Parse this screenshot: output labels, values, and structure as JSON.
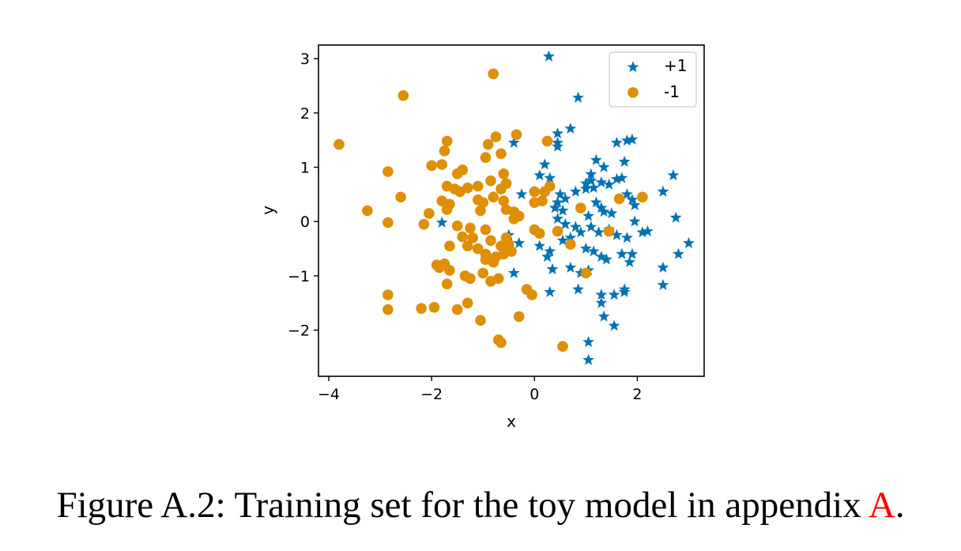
{
  "chart_data": {
    "type": "scatter",
    "xlabel": "x",
    "ylabel": "y",
    "xlim": [
      -4.2,
      3.3
    ],
    "ylim": [
      -2.85,
      3.25
    ],
    "xticks": [
      -4,
      -2,
      0,
      2
    ],
    "yticks": [
      -2,
      -1,
      0,
      1,
      2,
      3
    ],
    "grid": false,
    "legend_position": "top-right",
    "series": [
      {
        "name": "+1",
        "marker": "star",
        "color": "#0173b2",
        "points": [
          [
            0.28,
            3.04
          ],
          [
            0.85,
            2.28
          ],
          [
            0.7,
            1.71
          ],
          [
            0.45,
            1.62
          ],
          [
            0.45,
            1.38
          ],
          [
            0.45,
            1.45
          ],
          [
            1.6,
            1.45
          ],
          [
            1.8,
            1.49
          ],
          [
            1.9,
            1.51
          ],
          [
            -0.4,
            1.45
          ],
          [
            1.2,
            1.13
          ],
          [
            1.35,
            1.0
          ],
          [
            1.1,
            0.87
          ],
          [
            1.75,
            1.1
          ],
          [
            0.1,
            0.85
          ],
          [
            0.2,
            1.05
          ],
          [
            0.3,
            0.8
          ],
          [
            1.0,
            0.7
          ],
          [
            1.1,
            0.75
          ],
          [
            1.15,
            0.62
          ],
          [
            1.3,
            0.72
          ],
          [
            1.45,
            0.68
          ],
          [
            1.6,
            0.78
          ],
          [
            1.7,
            0.8
          ],
          [
            2.7,
            0.85
          ],
          [
            2.5,
            0.55
          ],
          [
            0.5,
            0.5
          ],
          [
            0.45,
            0.35
          ],
          [
            0.6,
            0.42
          ],
          [
            0.4,
            0.25
          ],
          [
            0.55,
            0.2
          ],
          [
            0.8,
            0.55
          ],
          [
            1.0,
            0.6
          ],
          [
            1.2,
            0.35
          ],
          [
            1.3,
            0.25
          ],
          [
            1.35,
            0.18
          ],
          [
            1.5,
            0.15
          ],
          [
            1.9,
            0.4
          ],
          [
            1.95,
            0.3
          ],
          [
            1.8,
            0.5
          ],
          [
            2.75,
            0.07
          ],
          [
            0.45,
            0.05
          ],
          [
            0.6,
            -0.05
          ],
          [
            0.8,
            -0.1
          ],
          [
            0.9,
            -0.2
          ],
          [
            1.05,
            0.1
          ],
          [
            1.1,
            -0.1
          ],
          [
            1.25,
            -0.2
          ],
          [
            1.45,
            -0.15
          ],
          [
            1.6,
            -0.25
          ],
          [
            1.8,
            -0.3
          ],
          [
            1.95,
            0.0
          ],
          [
            2.1,
            -0.2
          ],
          [
            2.2,
            -0.18
          ],
          [
            -0.3,
            -0.4
          ],
          [
            -0.5,
            -0.25
          ],
          [
            0.1,
            -0.45
          ],
          [
            0.3,
            -0.55
          ],
          [
            0.55,
            -0.35
          ],
          [
            0.7,
            -0.3
          ],
          [
            1.0,
            -0.5
          ],
          [
            1.15,
            -0.55
          ],
          [
            1.3,
            -0.65
          ],
          [
            1.4,
            -0.7
          ],
          [
            1.7,
            -0.6
          ],
          [
            1.9,
            -0.6
          ],
          [
            0.25,
            -0.65
          ],
          [
            0.35,
            -0.88
          ],
          [
            0.7,
            -0.85
          ],
          [
            0.9,
            -0.95
          ],
          [
            1.05,
            -0.9
          ],
          [
            1.85,
            -0.75
          ],
          [
            2.5,
            -0.85
          ],
          [
            2.8,
            -0.6
          ],
          [
            3.0,
            -0.4
          ],
          [
            -0.4,
            -0.95
          ],
          [
            0.3,
            -1.3
          ],
          [
            0.85,
            -1.25
          ],
          [
            1.3,
            -1.35
          ],
          [
            1.3,
            -1.5
          ],
          [
            1.55,
            -1.35
          ],
          [
            1.75,
            -1.25
          ],
          [
            1.75,
            -1.3
          ],
          [
            2.5,
            -1.17
          ],
          [
            1.35,
            -1.75
          ],
          [
            1.55,
            -1.92
          ],
          [
            1.05,
            -2.22
          ],
          [
            1.05,
            -2.55
          ],
          [
            -1.8,
            -0.02
          ],
          [
            -0.55,
            0.7
          ],
          [
            -0.25,
            0.5
          ]
        ]
      },
      {
        "name": "-1",
        "marker": "circle",
        "color": "#de8f05",
        "points": [
          [
            -0.8,
            2.72
          ],
          [
            -2.55,
            2.32
          ],
          [
            -3.8,
            1.42
          ],
          [
            -1.7,
            1.48
          ],
          [
            -1.75,
            1.3
          ],
          [
            -1.8,
            1.05
          ],
          [
            -2.0,
            1.03
          ],
          [
            -0.9,
            1.42
          ],
          [
            -0.75,
            1.56
          ],
          [
            -0.35,
            1.6
          ],
          [
            -0.65,
            1.25
          ],
          [
            -0.95,
            1.18
          ],
          [
            0.25,
            1.48
          ],
          [
            -2.85,
            0.92
          ],
          [
            -1.5,
            0.88
          ],
          [
            -1.4,
            0.95
          ],
          [
            -0.6,
            0.88
          ],
          [
            -1.7,
            0.65
          ],
          [
            -1.55,
            0.6
          ],
          [
            -1.45,
            0.55
          ],
          [
            -1.3,
            0.62
          ],
          [
            -1.1,
            0.65
          ],
          [
            -0.85,
            0.75
          ],
          [
            -0.65,
            0.6
          ],
          [
            -0.55,
            0.7
          ],
          [
            0.3,
            0.65
          ],
          [
            0.2,
            0.55
          ],
          [
            0.0,
            0.55
          ],
          [
            -2.6,
            0.45
          ],
          [
            -1.8,
            0.38
          ],
          [
            -1.65,
            0.32
          ],
          [
            -1.1,
            0.4
          ],
          [
            -1.0,
            0.35
          ],
          [
            -0.8,
            0.45
          ],
          [
            -0.6,
            0.38
          ],
          [
            0.0,
            0.35
          ],
          [
            0.15,
            0.38
          ],
          [
            0.9,
            0.25
          ],
          [
            1.65,
            0.42
          ],
          [
            2.1,
            0.45
          ],
          [
            -3.25,
            0.2
          ],
          [
            -2.05,
            0.15
          ],
          [
            -1.7,
            0.22
          ],
          [
            -1.05,
            0.2
          ],
          [
            -0.55,
            0.22
          ],
          [
            -0.4,
            0.18
          ],
          [
            -0.3,
            0.1
          ],
          [
            -0.4,
            0.05
          ],
          [
            -2.85,
            -0.02
          ],
          [
            -2.15,
            -0.05
          ],
          [
            -1.5,
            -0.08
          ],
          [
            -1.25,
            -0.12
          ],
          [
            -0.95,
            -0.15
          ],
          [
            0.0,
            -0.15
          ],
          [
            0.1,
            -0.22
          ],
          [
            0.45,
            -0.18
          ],
          [
            -1.4,
            -0.28
          ],
          [
            -1.2,
            -0.3
          ],
          [
            -0.85,
            -0.35
          ],
          [
            -1.65,
            -0.45
          ],
          [
            -1.3,
            -0.45
          ],
          [
            -1.1,
            -0.5
          ],
          [
            -0.65,
            -0.45
          ],
          [
            -0.5,
            -0.42
          ],
          [
            -0.45,
            -0.55
          ],
          [
            0.7,
            -0.42
          ],
          [
            -0.95,
            -0.6
          ],
          [
            -0.75,
            -0.65
          ],
          [
            -0.6,
            -0.6
          ],
          [
            -0.95,
            -0.7
          ],
          [
            -0.8,
            -0.75
          ],
          [
            -1.75,
            -0.78
          ],
          [
            -1.85,
            -0.85
          ],
          [
            -1.65,
            -0.9
          ],
          [
            -1.9,
            -0.8
          ],
          [
            -1.0,
            -0.95
          ],
          [
            -1.35,
            -1.0
          ],
          [
            -1.25,
            -1.05
          ],
          [
            -0.85,
            -1.1
          ],
          [
            -0.7,
            -1.05
          ],
          [
            -1.7,
            -1.15
          ],
          [
            1.0,
            -0.95
          ],
          [
            -0.15,
            -1.25
          ],
          [
            -0.05,
            -1.35
          ],
          [
            -2.85,
            -1.35
          ],
          [
            -1.3,
            -1.5
          ],
          [
            -1.5,
            -1.62
          ],
          [
            -1.95,
            -1.58
          ],
          [
            -2.2,
            -1.6
          ],
          [
            -2.85,
            -1.62
          ],
          [
            -1.05,
            -1.82
          ],
          [
            -0.3,
            -1.75
          ],
          [
            -0.7,
            -2.18
          ],
          [
            -0.65,
            -2.23
          ],
          [
            0.55,
            -2.3
          ],
          [
            1.45,
            -0.18
          ],
          [
            -0.55,
            -0.3
          ]
        ]
      }
    ]
  },
  "caption": {
    "prefix": "Figure A.2:  Training set for the toy model in appendix ",
    "ref": "A",
    "suffix": "."
  }
}
